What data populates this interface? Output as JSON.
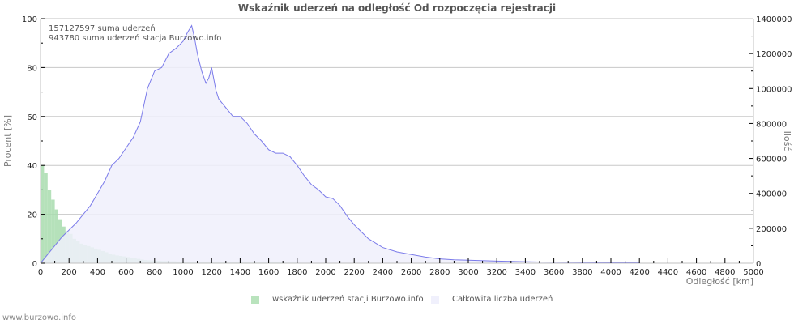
{
  "title": "Wskaźnik uderzeń na odległość Od rozpoczęcia rejestracji",
  "info": {
    "total_line": "157127597 suma uderzeń",
    "station_line": "943780 suma uderzeń stacja Burzowo.info"
  },
  "footer": "www.burzowo.info",
  "legend": [
    {
      "label": "wskaźnik uderzeń stacji Burzowo.info",
      "color": "#b9e3bd"
    },
    {
      "label": "Całkowita liczba uderzeń",
      "color": "#f0f0fc"
    }
  ],
  "colors": {
    "green_bar": "#a8dcae",
    "blue_fill": "#f0f0fb",
    "blue_line": "#7b7bea",
    "grid": "#c8c8c8",
    "axis": "#c0c0c0"
  },
  "chart_data": {
    "type": "bar+area",
    "title": "Wskaźnik uderzeń na odległość Od rozpoczęcia rejestracji",
    "xlabel": "Odległość   [km]",
    "ylabel_left": "Procent   [%]",
    "ylabel_right": "Ilość",
    "xlim": [
      0,
      5000
    ],
    "ylim_left": [
      0,
      100
    ],
    "ylim_right": [
      0,
      1400000
    ],
    "x_ticks": [
      "0",
      "200",
      "400",
      "600",
      "800",
      "1000",
      "1200",
      "1400",
      "1600",
      "1800",
      "2000",
      "2200",
      "2400",
      "2600",
      "2800",
      "3000",
      "3200",
      "3400",
      "3600",
      "3800",
      "4000",
      "4200",
      "4400",
      "4600",
      "4800",
      "5000"
    ],
    "y_left_ticks": [
      "0",
      "20",
      "40",
      "60",
      "80",
      "100"
    ],
    "y_right_ticks": [
      "0",
      "200000",
      "400000",
      "600000",
      "800000",
      "1000000",
      "1200000",
      "1400000"
    ],
    "grid": true,
    "legend_position": "bottom",
    "series": [
      {
        "name": "wskaźnik uderzeń stacji Burzowo.info",
        "type": "bar",
        "axis": "left",
        "bin_km": 25,
        "x": [
          0,
          25,
          50,
          75,
          100,
          125,
          150,
          175,
          200,
          225,
          250,
          275,
          300,
          325,
          350,
          375,
          400,
          425,
          450,
          475,
          500,
          525,
          550,
          575,
          600,
          625,
          650,
          675,
          700,
          725,
          750,
          775,
          800,
          850,
          900,
          950,
          1000,
          1100,
          1200,
          1300,
          1400,
          1500,
          1600,
          1700,
          1800
        ],
        "values": [
          40,
          37,
          30,
          26,
          22,
          18,
          15,
          13,
          12,
          10,
          9,
          8,
          7.5,
          7,
          6.5,
          6,
          5.5,
          5,
          4.5,
          4,
          3.5,
          3.2,
          3,
          2.8,
          2.5,
          2.2,
          2,
          1.8,
          1.5,
          1.3,
          1.2,
          1.1,
          1,
          0.9,
          0.8,
          0.7,
          0.6,
          0.55,
          0.5,
          0.45,
          0.4,
          0.35,
          0.3,
          0.25,
          0.2
        ]
      },
      {
        "name": "Całkowita liczba uderzeń",
        "type": "area",
        "axis": "right",
        "x": [
          0,
          50,
          100,
          150,
          200,
          250,
          300,
          350,
          400,
          450,
          500,
          550,
          600,
          650,
          700,
          750,
          800,
          850,
          900,
          950,
          1000,
          1030,
          1060,
          1080,
          1100,
          1130,
          1160,
          1180,
          1200,
          1230,
          1250,
          1300,
          1350,
          1400,
          1450,
          1500,
          1550,
          1600,
          1650,
          1700,
          1750,
          1800,
          1850,
          1900,
          1950,
          2000,
          2050,
          2100,
          2150,
          2200,
          2300,
          2400,
          2500,
          2600,
          2700,
          2800,
          2900,
          3000,
          3200,
          3500,
          3800,
          4000,
          4200
        ],
        "values": [
          0,
          50000,
          100000,
          150000,
          190000,
          230000,
          280000,
          330000,
          400000,
          470000,
          560000,
          600000,
          660000,
          720000,
          810000,
          1000000,
          1100000,
          1120000,
          1200000,
          1230000,
          1270000,
          1320000,
          1360000,
          1290000,
          1200000,
          1100000,
          1030000,
          1060000,
          1120000,
          990000,
          940000,
          890000,
          840000,
          840000,
          800000,
          740000,
          700000,
          650000,
          630000,
          630000,
          610000,
          560000,
          500000,
          450000,
          420000,
          380000,
          370000,
          330000,
          270000,
          220000,
          140000,
          90000,
          65000,
          50000,
          35000,
          25000,
          20000,
          17000,
          12000,
          7000,
          5000,
          4500,
          4000
        ]
      }
    ]
  }
}
